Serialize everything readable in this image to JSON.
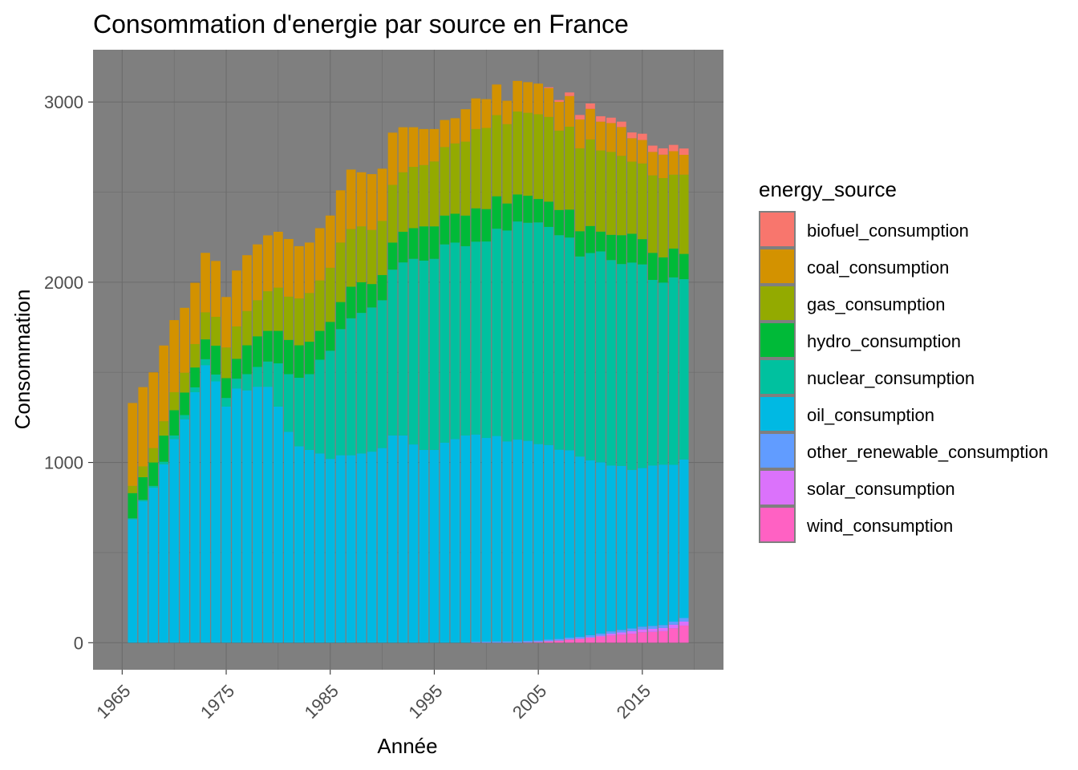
{
  "chart_data": {
    "type": "bar",
    "stacked": true,
    "title": "Consommation d'energie par source en France",
    "xlabel": "Année",
    "ylabel": "Consommation",
    "x_ticks": [
      "1965",
      "1975",
      "1985",
      "1995",
      "2005",
      "2015"
    ],
    "x_tick_values": [
      1965,
      1975,
      1985,
      1995,
      2005,
      2015
    ],
    "y_ticks": [
      "0",
      "1000",
      "2000",
      "3000"
    ],
    "y_tick_values": [
      0,
      1000,
      2000,
      3000
    ],
    "xlim": [
      1962.2,
      2022.8
    ],
    "ylim": [
      -150,
      3290
    ],
    "grid": true,
    "panel_background": "#7f7f7f",
    "legend": {
      "title": "energy_source",
      "placement": "right",
      "labels": [
        "biofuel_consumption",
        "coal_consumption",
        "gas_consumption",
        "hydro_consumption",
        "nuclear_consumption",
        "oil_consumption",
        "other_renewable_consumption",
        "solar_consumption",
        "wind_consumption"
      ]
    },
    "x": [
      1966,
      1967,
      1968,
      1969,
      1970,
      1971,
      1972,
      1973,
      1974,
      1975,
      1976,
      1977,
      1978,
      1979,
      1980,
      1981,
      1982,
      1983,
      1984,
      1985,
      1986,
      1987,
      1988,
      1989,
      1990,
      1991,
      1992,
      1993,
      1994,
      1995,
      1996,
      1997,
      1998,
      1999,
      2000,
      2001,
      2002,
      2003,
      2004,
      2005,
      2006,
      2007,
      2008,
      2009,
      2010,
      2011,
      2012,
      2013,
      2014,
      2015,
      2016,
      2017,
      2018,
      2019
    ],
    "series": [
      {
        "name": "wind_consumption",
        "color": "#ff61c3",
        "values": [
          0,
          0,
          0,
          0,
          0,
          0,
          0,
          0,
          0,
          0,
          0,
          0,
          0,
          0,
          0,
          0,
          0,
          0,
          0,
          0,
          0,
          0,
          0,
          0,
          0,
          0,
          0,
          0,
          0,
          0,
          0,
          0,
          0,
          0,
          0,
          0,
          0,
          0,
          2,
          4,
          8,
          12,
          18,
          22,
          28,
          34,
          40,
          45,
          50,
          58,
          60,
          64,
          80,
          95
        ]
      },
      {
        "name": "solar_consumption",
        "color": "#db72fb",
        "values": [
          0,
          0,
          0,
          0,
          0,
          0,
          0,
          0,
          0,
          0,
          0,
          0,
          0,
          0,
          0,
          0,
          0,
          0,
          0,
          0,
          0,
          0,
          0,
          0,
          0,
          0,
          0,
          0,
          0,
          0,
          0,
          0,
          0,
          0,
          0,
          0,
          0,
          0,
          0,
          0,
          0,
          0,
          0,
          1,
          2,
          5,
          10,
          12,
          14,
          16,
          17,
          18,
          20,
          22
        ]
      },
      {
        "name": "other_renewable_consumption",
        "color": "#619cff",
        "values": [
          0,
          0,
          0,
          0,
          0,
          0,
          0,
          0,
          0,
          0,
          0,
          0,
          0,
          0,
          0,
          0,
          0,
          0,
          0,
          0,
          0,
          0,
          0,
          0,
          0,
          0,
          0,
          0,
          0,
          0,
          0,
          0,
          0,
          5,
          6,
          7,
          7,
          7,
          8,
          8,
          9,
          9,
          10,
          10,
          12,
          12,
          13,
          14,
          15,
          15,
          16,
          16,
          17,
          20
        ]
      },
      {
        "name": "oil_consumption",
        "color": "#00b9e3",
        "values": [
          685,
          785,
          860,
          990,
          1130,
          1240,
          1390,
          1540,
          1450,
          1310,
          1410,
          1400,
          1420,
          1420,
          1310,
          1170,
          1090,
          1070,
          1050,
          1020,
          1040,
          1040,
          1050,
          1060,
          1080,
          1150,
          1150,
          1100,
          1070,
          1070,
          1110,
          1130,
          1150,
          1150,
          1130,
          1140,
          1110,
          1120,
          1110,
          1090,
          1080,
          1050,
          1040,
          1000,
          970,
          950,
          920,
          910,
          880,
          880,
          890,
          890,
          870,
          880
        ]
      },
      {
        "name": "nuclear_consumption",
        "color": "#00c19f",
        "values": [
          5,
          8,
          10,
          14,
          20,
          23,
          27,
          33,
          38,
          48,
          55,
          90,
          110,
          140,
          240,
          320,
          380,
          420,
          520,
          600,
          700,
          760,
          780,
          800,
          820,
          920,
          960,
          1030,
          1050,
          1060,
          1100,
          1090,
          1050,
          1070,
          1090,
          1150,
          1170,
          1210,
          1210,
          1230,
          1210,
          1190,
          1180,
          1110,
          1150,
          1170,
          1140,
          1120,
          1150,
          1130,
          1030,
          1010,
          1040,
          1000
        ]
      },
      {
        "name": "hydro_consumption",
        "color": "#00ba38",
        "values": [
          140,
          125,
          130,
          145,
          140,
          125,
          110,
          110,
          160,
          110,
          110,
          160,
          170,
          170,
          180,
          190,
          180,
          180,
          160,
          160,
          150,
          175,
          170,
          130,
          140,
          150,
          170,
          170,
          190,
          180,
          160,
          160,
          170,
          185,
          180,
          180,
          150,
          150,
          150,
          130,
          140,
          140,
          155,
          140,
          150,
          110,
          140,
          160,
          160,
          140,
          150,
          140,
          160,
          140
        ]
      },
      {
        "name": "gas_consumption",
        "color": "#93aa00",
        "values": [
          40,
          60,
          80,
          80,
          100,
          110,
          130,
          150,
          160,
          170,
          180,
          190,
          200,
          220,
          240,
          240,
          260,
          270,
          280,
          300,
          330,
          320,
          310,
          300,
          300,
          320,
          330,
          340,
          340,
          360,
          380,
          390,
          410,
          440,
          450,
          450,
          440,
          460,
          460,
          470,
          470,
          440,
          460,
          460,
          480,
          450,
          460,
          440,
          400,
          420,
          430,
          440,
          410,
          440
        ]
      },
      {
        "name": "coal_consumption",
        "color": "#d39200",
        "values": [
          460,
          440,
          420,
          420,
          400,
          360,
          340,
          330,
          310,
          280,
          310,
          310,
          310,
          310,
          310,
          320,
          290,
          280,
          290,
          290,
          290,
          330,
          300,
          310,
          290,
          290,
          250,
          220,
          200,
          180,
          150,
          140,
          180,
          170,
          160,
          170,
          130,
          170,
          170,
          170,
          160,
          160,
          170,
          160,
          170,
          160,
          160,
          160,
          130,
          130,
          130,
          130,
          130,
          110
        ]
      },
      {
        "name": "biofuel_consumption",
        "color": "#f8766d",
        "values": [
          0,
          0,
          0,
          0,
          0,
          0,
          0,
          0,
          0,
          0,
          0,
          0,
          0,
          0,
          0,
          0,
          0,
          0,
          0,
          0,
          0,
          0,
          0,
          0,
          0,
          0,
          0,
          0,
          0,
          0,
          0,
          0,
          0,
          0,
          0,
          0,
          0,
          0,
          0,
          0,
          5,
          10,
          20,
          25,
          30,
          30,
          30,
          30,
          32,
          35,
          35,
          35,
          35,
          35
        ]
      }
    ]
  }
}
